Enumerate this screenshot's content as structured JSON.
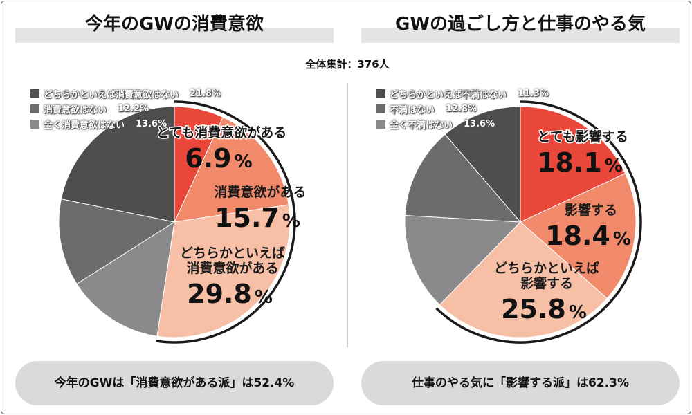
{
  "header": {
    "title_left": "今年のGWの消費意欲",
    "title_right": "GWの過ごし方と仕事のやる気",
    "sample": "全体集計：376人"
  },
  "chart_data": [
    {
      "type": "pie",
      "title": "今年のGWの消費意欲",
      "start": "top, clockwise",
      "slices": [
        {
          "label": "とても消費意欲がある",
          "value": 6.9,
          "display": "6.9%",
          "color": "#e8473a",
          "lines": [
            "とても消費意欲がある"
          ]
        },
        {
          "label": "消費意欲がある",
          "value": 15.7,
          "display": "15.7%",
          "color": "#f08a6a",
          "lines": [
            "消費意欲がある"
          ]
        },
        {
          "label": "どちらかといえば消費意欲がある",
          "value": 29.8,
          "display": "29.8%",
          "color": "#f7bfa6",
          "lines": [
            "どちらかといえば",
            "消費意欲がある"
          ]
        },
        {
          "label": "全く消費意欲はない",
          "value": 13.6,
          "display": "13.6%",
          "color": "#8a8a8c"
        },
        {
          "label": "消費意欲はない",
          "value": 12.2,
          "display": "12.2%",
          "color": "#6c6c6e"
        },
        {
          "label": "どちらかといえば消費意欲はない",
          "value": 21.8,
          "display": "21.8%",
          "color": "#4e4e50"
        }
      ],
      "legend": [
        {
          "label": "どちらかといえば消費意欲はない",
          "display": "21.8%",
          "color": "#4e4e50"
        },
        {
          "label": "消費意欲はない",
          "display": "12.2%",
          "color": "#6c6c6e"
        },
        {
          "label": "全く消費意欲はない",
          "display": "13.6%",
          "color": "#8a8a8c"
        }
      ]
    },
    {
      "type": "pie",
      "title": "GWの過ごし方と仕事のやる気",
      "start": "top, clockwise",
      "slices": [
        {
          "label": "とても影響する",
          "value": 18.1,
          "display": "18.1%",
          "color": "#e8473a",
          "lines": [
            "とても影響する"
          ]
        },
        {
          "label": "影響する",
          "value": 18.4,
          "display": "18.4%",
          "color": "#f08a6a",
          "lines": [
            "影響する"
          ]
        },
        {
          "label": "どちらかといえば影響する",
          "value": 25.8,
          "display": "25.8%",
          "color": "#f7bfa6",
          "lines": [
            "どちらかといえば",
            "影響する"
          ]
        },
        {
          "label": "全く不満はない",
          "value": 13.6,
          "display": "13.6%",
          "color": "#8a8a8c"
        },
        {
          "label": "不満はない",
          "value": 12.8,
          "display": "12.8%",
          "color": "#6c6c6e"
        },
        {
          "label": "どちらかといえば不満はない",
          "value": 11.3,
          "display": "11.3%",
          "color": "#4e4e50"
        }
      ],
      "legend": [
        {
          "label": "どちらかといえば不満はない",
          "display": "11.3%",
          "color": "#4e4e50"
        },
        {
          "label": "不満はない",
          "display": "12.8%",
          "color": "#6c6c6e"
        },
        {
          "label": "全く不満はない",
          "display": "13.6%",
          "color": "#8a8a8c"
        }
      ]
    }
  ],
  "summary": {
    "left": "今年のGWは「消費意欲がある派」は52.4%",
    "right": "仕事のやる気に「影響する派」は62.3%"
  }
}
